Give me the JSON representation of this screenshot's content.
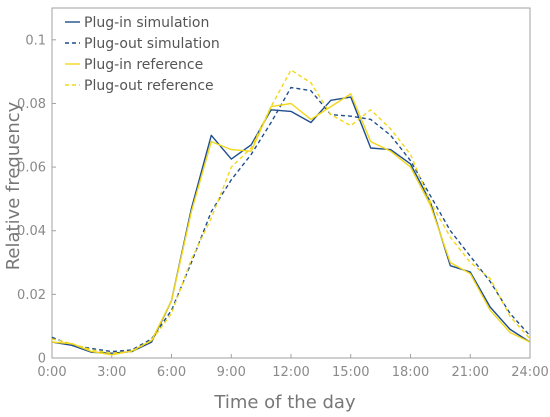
{
  "chart_data": {
    "type": "line",
    "title": "",
    "xlabel": "Time of the day",
    "ylabel": "Relative frequency",
    "xlim": [
      0,
      24
    ],
    "ylim": [
      0,
      0.11
    ],
    "xticks": [
      0,
      3,
      6,
      9,
      12,
      15,
      18,
      21,
      24
    ],
    "xtick_labels": [
      "0:00",
      "3:00",
      "6:00",
      "9:00",
      "12:00",
      "15:00",
      "18:00",
      "21:00",
      "24:00"
    ],
    "yticks": [
      0,
      0.02,
      0.04,
      0.06,
      0.08,
      0.1
    ],
    "ytick_labels": [
      "0",
      "0.02",
      "0.04",
      "0.06",
      "0.08",
      "0.1"
    ],
    "grid": false,
    "legend_position": "top-left",
    "x": [
      0,
      1,
      2,
      3,
      4,
      5,
      6,
      7,
      8,
      9,
      10,
      11,
      12,
      13,
      14,
      15,
      16,
      17,
      18,
      19,
      20,
      21,
      22,
      23,
      24
    ],
    "series": [
      {
        "name": "Plug-in simulation",
        "color": "#1f4e8c",
        "style": "solid",
        "values": [
          0.005,
          0.004,
          0.0018,
          0.0015,
          0.002,
          0.005,
          0.018,
          0.047,
          0.07,
          0.0625,
          0.067,
          0.078,
          0.0775,
          0.074,
          0.081,
          0.082,
          0.066,
          0.0655,
          0.061,
          0.049,
          0.029,
          0.027,
          0.016,
          0.009,
          0.005
        ]
      },
      {
        "name": "Plug-out simulation",
        "color": "#1f4e8c",
        "style": "dashed",
        "values": [
          0.0065,
          0.004,
          0.003,
          0.002,
          0.0025,
          0.006,
          0.015,
          0.03,
          0.046,
          0.056,
          0.064,
          0.074,
          0.085,
          0.084,
          0.0765,
          0.076,
          0.075,
          0.07,
          0.062,
          0.051,
          0.04,
          0.032,
          0.024,
          0.014,
          0.007
        ]
      },
      {
        "name": "Plug-in reference",
        "color": "#f2d71a",
        "style": "solid",
        "values": [
          0.005,
          0.0045,
          0.002,
          0.001,
          0.0022,
          0.0055,
          0.018,
          0.046,
          0.068,
          0.0655,
          0.065,
          0.079,
          0.08,
          0.075,
          0.079,
          0.083,
          0.068,
          0.065,
          0.06,
          0.048,
          0.03,
          0.0265,
          0.015,
          0.008,
          0.005
        ]
      },
      {
        "name": "Plug-out reference",
        "color": "#f2d71a",
        "style": "dashed",
        "values": [
          0.006,
          0.0045,
          0.0025,
          0.0015,
          0.002,
          0.0055,
          0.014,
          0.031,
          0.044,
          0.06,
          0.066,
          0.079,
          0.0905,
          0.0865,
          0.0765,
          0.073,
          0.078,
          0.072,
          0.064,
          0.049,
          0.038,
          0.03,
          0.025,
          0.013,
          0.006
        ]
      }
    ]
  }
}
